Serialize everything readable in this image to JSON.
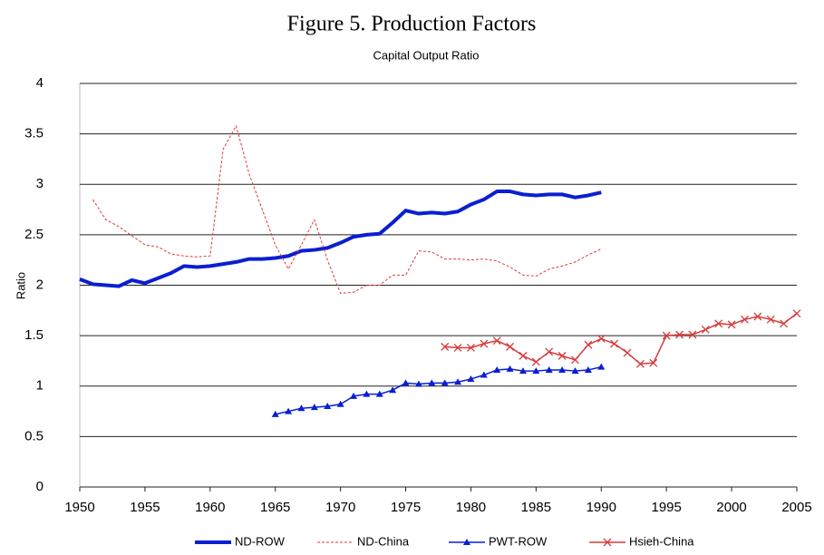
{
  "chart_data": {
    "type": "line",
    "title": "Figure 5. Production Factors",
    "subtitle": "Capital Output Ratio",
    "y_label": "Ratio",
    "xlim": [
      1950,
      2005
    ],
    "xticks": [
      1950,
      1955,
      1960,
      1965,
      1970,
      1975,
      1980,
      1985,
      1990,
      1995,
      2000,
      2005
    ],
    "ylim": [
      0,
      4
    ],
    "yticks": [
      0,
      0.5,
      1,
      1.5,
      2,
      2.5,
      3,
      3.5,
      4
    ],
    "grid": true,
    "legend": "bottom",
    "series": [
      {
        "name": "ND-ROW",
        "color": "#0a1ed2",
        "width": 4,
        "dash": false,
        "marker": "none",
        "x": [
          1950,
          1951,
          1952,
          1953,
          1954,
          1955,
          1956,
          1957,
          1958,
          1959,
          1960,
          1961,
          1962,
          1963,
          1964,
          1965,
          1966,
          1967,
          1968,
          1969,
          1970,
          1971,
          1972,
          1973,
          1974,
          1975,
          1976,
          1977,
          1978,
          1979,
          1980,
          1981,
          1982,
          1983,
          1984,
          1985,
          1986,
          1987,
          1988,
          1989,
          1990
        ],
        "values": [
          2.06,
          2.01,
          2.0,
          1.99,
          2.05,
          2.02,
          2.07,
          2.12,
          2.19,
          2.18,
          2.19,
          2.21,
          2.23,
          2.26,
          2.26,
          2.27,
          2.29,
          2.34,
          2.35,
          2.37,
          2.42,
          2.48,
          2.5,
          2.51,
          2.62,
          2.74,
          2.71,
          2.72,
          2.71,
          2.73,
          2.8,
          2.85,
          2.93,
          2.93,
          2.9,
          2.89,
          2.9,
          2.9,
          2.87,
          2.89,
          2.92
        ]
      },
      {
        "name": "ND-China",
        "color": "#e23b3b",
        "width": 1,
        "dash": true,
        "marker": "none",
        "x": [
          1951,
          1952,
          1953,
          1954,
          1955,
          1956,
          1957,
          1958,
          1959,
          1960,
          1961,
          1962,
          1963,
          1964,
          1965,
          1966,
          1967,
          1968,
          1969,
          1970,
          1971,
          1972,
          1973,
          1974,
          1975,
          1976,
          1977,
          1978,
          1979,
          1980,
          1981,
          1982,
          1983,
          1984,
          1985,
          1986,
          1987,
          1988,
          1989,
          1990
        ],
        "values": [
          2.85,
          2.65,
          2.58,
          2.49,
          2.4,
          2.38,
          2.31,
          2.29,
          2.28,
          2.29,
          3.35,
          3.58,
          3.1,
          2.75,
          2.4,
          2.16,
          2.4,
          2.65,
          2.25,
          1.92,
          1.93,
          2.0,
          2.0,
          2.1,
          2.1,
          2.34,
          2.33,
          2.26,
          2.26,
          2.25,
          2.26,
          2.24,
          2.18,
          2.1,
          2.09,
          2.16,
          2.19,
          2.23,
          2.3,
          2.36
        ]
      },
      {
        "name": "PWT-ROW",
        "color": "#0a1ed2",
        "width": 1.5,
        "dash": false,
        "marker": "triangle",
        "x": [
          1965,
          1966,
          1967,
          1968,
          1969,
          1970,
          1971,
          1972,
          1973,
          1974,
          1975,
          1976,
          1977,
          1978,
          1979,
          1980,
          1981,
          1982,
          1983,
          1984,
          1985,
          1986,
          1987,
          1988,
          1989,
          1990
        ],
        "values": [
          0.72,
          0.75,
          0.78,
          0.79,
          0.8,
          0.82,
          0.9,
          0.92,
          0.92,
          0.96,
          1.03,
          1.02,
          1.03,
          1.03,
          1.04,
          1.07,
          1.11,
          1.16,
          1.17,
          1.15,
          1.15,
          1.16,
          1.16,
          1.15,
          1.16,
          1.19
        ]
      },
      {
        "name": "Hsieh-China",
        "color": "#d83a3a",
        "width": 1.5,
        "dash": false,
        "marker": "x",
        "x": [
          1978,
          1979,
          1980,
          1981,
          1982,
          1983,
          1984,
          1985,
          1986,
          1987,
          1988,
          1989,
          1990,
          1991,
          1992,
          1993,
          1994,
          1995,
          1996,
          1997,
          1998,
          1999,
          2000,
          2001,
          2002,
          2003,
          2004,
          2005
        ],
        "values": [
          1.39,
          1.38,
          1.38,
          1.42,
          1.45,
          1.39,
          1.3,
          1.24,
          1.34,
          1.3,
          1.26,
          1.41,
          1.47,
          1.42,
          1.33,
          1.22,
          1.23,
          1.5,
          1.51,
          1.51,
          1.56,
          1.62,
          1.61,
          1.66,
          1.69,
          1.66,
          1.62,
          1.72
        ]
      }
    ]
  }
}
